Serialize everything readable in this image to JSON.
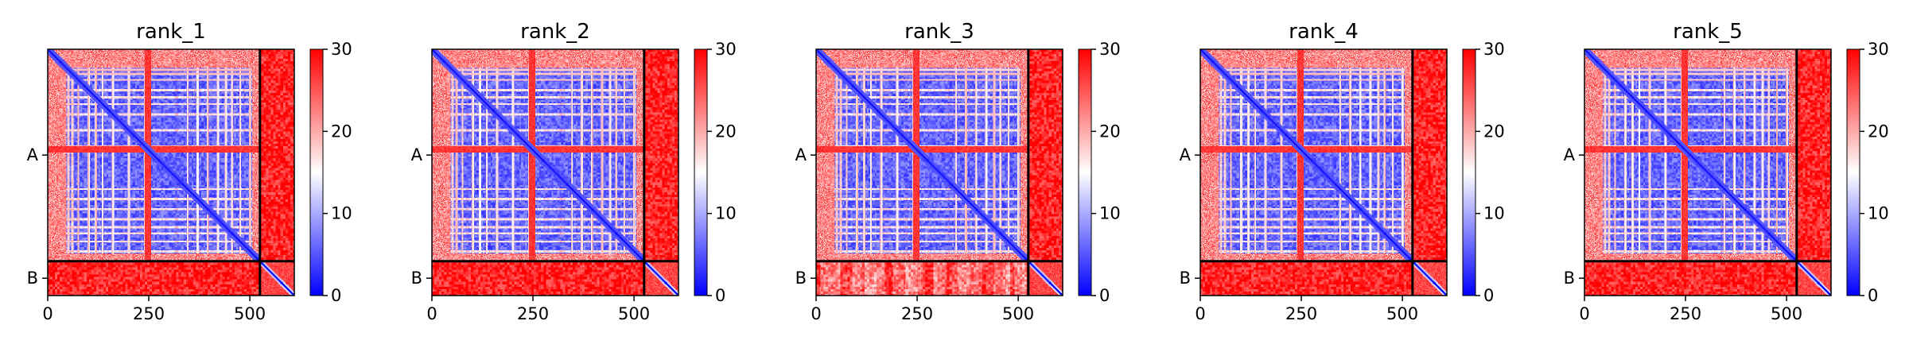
{
  "chart_data": {
    "type": "heatmap",
    "colormap": {
      "name": "bwr",
      "range": [
        0,
        30
      ],
      "colors": [
        "#0000ff",
        "#ffffff",
        "#ff0000"
      ],
      "ticks": [
        0,
        10,
        20,
        30
      ]
    },
    "matrix_size": 610,
    "chain_boundary": 525,
    "x_ticks": [
      0,
      250,
      500
    ],
    "y_labels": [
      {
        "label": "A",
        "position": 262
      },
      {
        "label": "B",
        "position": 567
      }
    ],
    "panels": [
      {
        "title": "rank_1"
      },
      {
        "title": "rank_2"
      },
      {
        "title": "rank_3"
      },
      {
        "title": "rank_4"
      },
      {
        "title": "rank_5"
      }
    ],
    "features": {
      "hot_rows": [
        {
          "from": 240,
          "to": 255,
          "level": 27
        }
      ],
      "light_rows": [
        60,
        75,
        100,
        118,
        135,
        160,
        200,
        345,
        370,
        395,
        420,
        440,
        455,
        475,
        500
      ],
      "light_cols": [
        50,
        60,
        75,
        240,
        248
      ],
      "inter_chain_level": 28,
      "intra_chain_base_level": 6,
      "diagonal_level": 0
    }
  }
}
